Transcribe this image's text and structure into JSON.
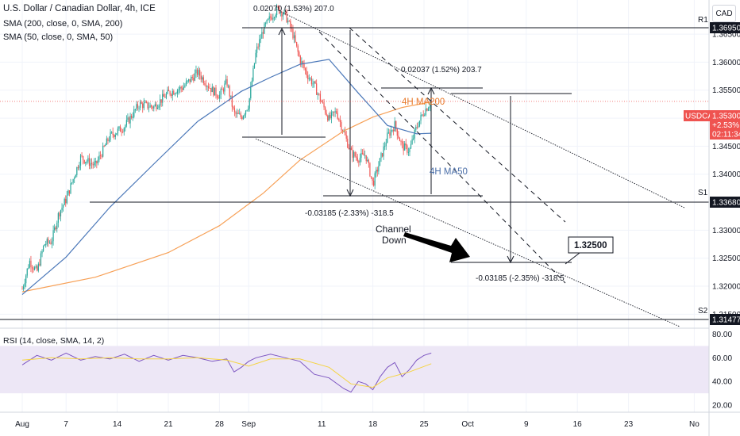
{
  "header": {
    "title": "U.S. Dollar / Canadian Dollar, 4h, ICE",
    "sma200_legend": "SMA (200, close, 0, SMA, 200)",
    "sma50_legend": "SMA (50, close, 0, SMA, 50)",
    "rsi_legend": "RSI (14, close, SMA, 14, 2)",
    "currency": "CAD"
  },
  "chart_data": {
    "type": "candlestick",
    "symbol": "USDCAD",
    "x_tick_labels": [
      "Aug",
      "7",
      "14",
      "21",
      "28",
      "Sep",
      "11",
      "18",
      "25",
      "Oct",
      "9",
      "16",
      "23",
      "No"
    ],
    "x_ticks_day_index": [
      0,
      6,
      13,
      20,
      27,
      31,
      41,
      48,
      55,
      61,
      69,
      76,
      83,
      92
    ],
    "y_ticks": [
      "1.36500",
      "1.36000",
      "1.35500",
      "1.35000",
      "1.34500",
      "1.34000",
      "1.33500",
      "1.33000",
      "1.32500",
      "1.32000",
      "1.31500"
    ],
    "ylim": [
      1.3125,
      1.3711
    ],
    "current_price": {
      "symbol": "USDCAD",
      "price": "1.35300",
      "change": "+2.53%",
      "countdown": "02:11:34"
    },
    "levels": [
      {
        "name": "R1",
        "price": 1.3695,
        "label": "1.36950"
      },
      {
        "name": "S1",
        "price": 1.3368,
        "label": "1.33680"
      },
      {
        "name": "S2",
        "price": 1.31477,
        "label": "1.31477"
      }
    ],
    "target": {
      "label": "1.32500",
      "price": 1.325
    },
    "measurements": [
      {
        "label": "0.02070 (1.53%) 207.0"
      },
      {
        "label": "0.02037 (1.52%) 203.7"
      },
      {
        "label": "-0.03185 (-2.33%) -318.5"
      },
      {
        "label": "-0.03185 (-2.35%) -318.5"
      }
    ],
    "annotations": [
      "4H MA200",
      "4H MA50",
      "Channel",
      "Down"
    ],
    "sma200": {
      "x": [
        0,
        10,
        20,
        27,
        33,
        38,
        44,
        48,
        52,
        56
      ],
      "y": [
        1.319,
        1.3216,
        1.326,
        1.3308,
        1.3366,
        1.3425,
        1.3477,
        1.3502,
        1.3519,
        1.3529
      ]
    },
    "sma50": {
      "x": [
        0,
        6,
        12,
        18,
        24,
        30,
        34,
        38,
        42,
        46,
        50,
        54,
        56
      ],
      "y": [
        1.3185,
        1.3252,
        1.3341,
        1.3418,
        1.3494,
        1.3548,
        1.3573,
        1.3596,
        1.3605,
        1.3545,
        1.3487,
        1.3472,
        1.3473
      ]
    },
    "price_path": {
      "x": [
        0,
        1,
        2,
        3,
        4,
        5,
        6,
        8,
        10,
        12,
        14,
        16,
        18,
        20,
        22,
        24,
        26,
        27,
        28,
        29,
        30,
        31,
        32,
        33,
        34,
        35,
        36,
        37,
        38,
        39,
        40,
        41,
        42,
        43,
        44,
        45,
        46,
        47,
        48,
        49,
        50,
        51,
        52,
        53,
        54,
        55,
        56
      ],
      "y": [
        1.3195,
        1.3245,
        1.3225,
        1.3275,
        1.328,
        1.333,
        1.3355,
        1.343,
        1.3415,
        1.3468,
        1.3485,
        1.3525,
        1.352,
        1.3545,
        1.3555,
        1.3582,
        1.355,
        1.354,
        1.3565,
        1.3508,
        1.3502,
        1.3525,
        1.3618,
        1.3658,
        1.368,
        1.3695,
        1.3685,
        1.3652,
        1.3605,
        1.3578,
        1.3558,
        1.3528,
        1.3498,
        1.3512,
        1.3475,
        1.3438,
        1.3428,
        1.3435,
        1.3382,
        1.3425,
        1.3468,
        1.3488,
        1.345,
        1.3442,
        1.3485,
        1.3512,
        1.353
      ]
    },
    "rsi": {
      "ylim": [
        14,
        85
      ],
      "y_ticks": [
        "80.00",
        "60.00",
        "40.00",
        "20.00"
      ],
      "band": [
        30,
        70
      ],
      "x": [
        0,
        2,
        4,
        6,
        8,
        10,
        12,
        14,
        16,
        18,
        20,
        22,
        24,
        26,
        28,
        29,
        30,
        31,
        32,
        34,
        36,
        38,
        40,
        42,
        44,
        45,
        46,
        47,
        48,
        49,
        50,
        51,
        52,
        53,
        54,
        55,
        56
      ],
      "y": [
        54,
        62,
        58,
        64,
        58,
        61,
        59,
        63,
        57,
        62,
        58,
        62,
        60,
        57,
        59,
        48,
        52,
        57,
        60,
        63,
        60,
        57,
        46,
        43,
        34,
        31,
        40,
        38,
        33,
        44,
        52,
        56,
        44,
        50,
        58,
        62,
        64
      ],
      "ma_x": [
        0,
        4,
        8,
        12,
        16,
        20,
        24,
        28,
        31,
        34,
        38,
        42,
        45,
        48,
        50,
        53,
        56
      ],
      "ma_y": [
        58,
        60,
        59,
        60,
        59,
        59,
        60,
        58,
        53,
        59,
        59,
        52,
        38,
        35,
        43,
        48,
        55
      ]
    }
  },
  "colors": {
    "up": "#26a69a",
    "down": "#ef5350",
    "sma200": "#f7a056",
    "sma50": "#4a77b8",
    "rsi": "#7e57c2",
    "rsi_ma": "#f5d442",
    "rsi_band": "#ede7f6",
    "price_label": "#ef5350",
    "ma200_text": "#e8792a",
    "ma50_text": "#4a6ea8"
  }
}
